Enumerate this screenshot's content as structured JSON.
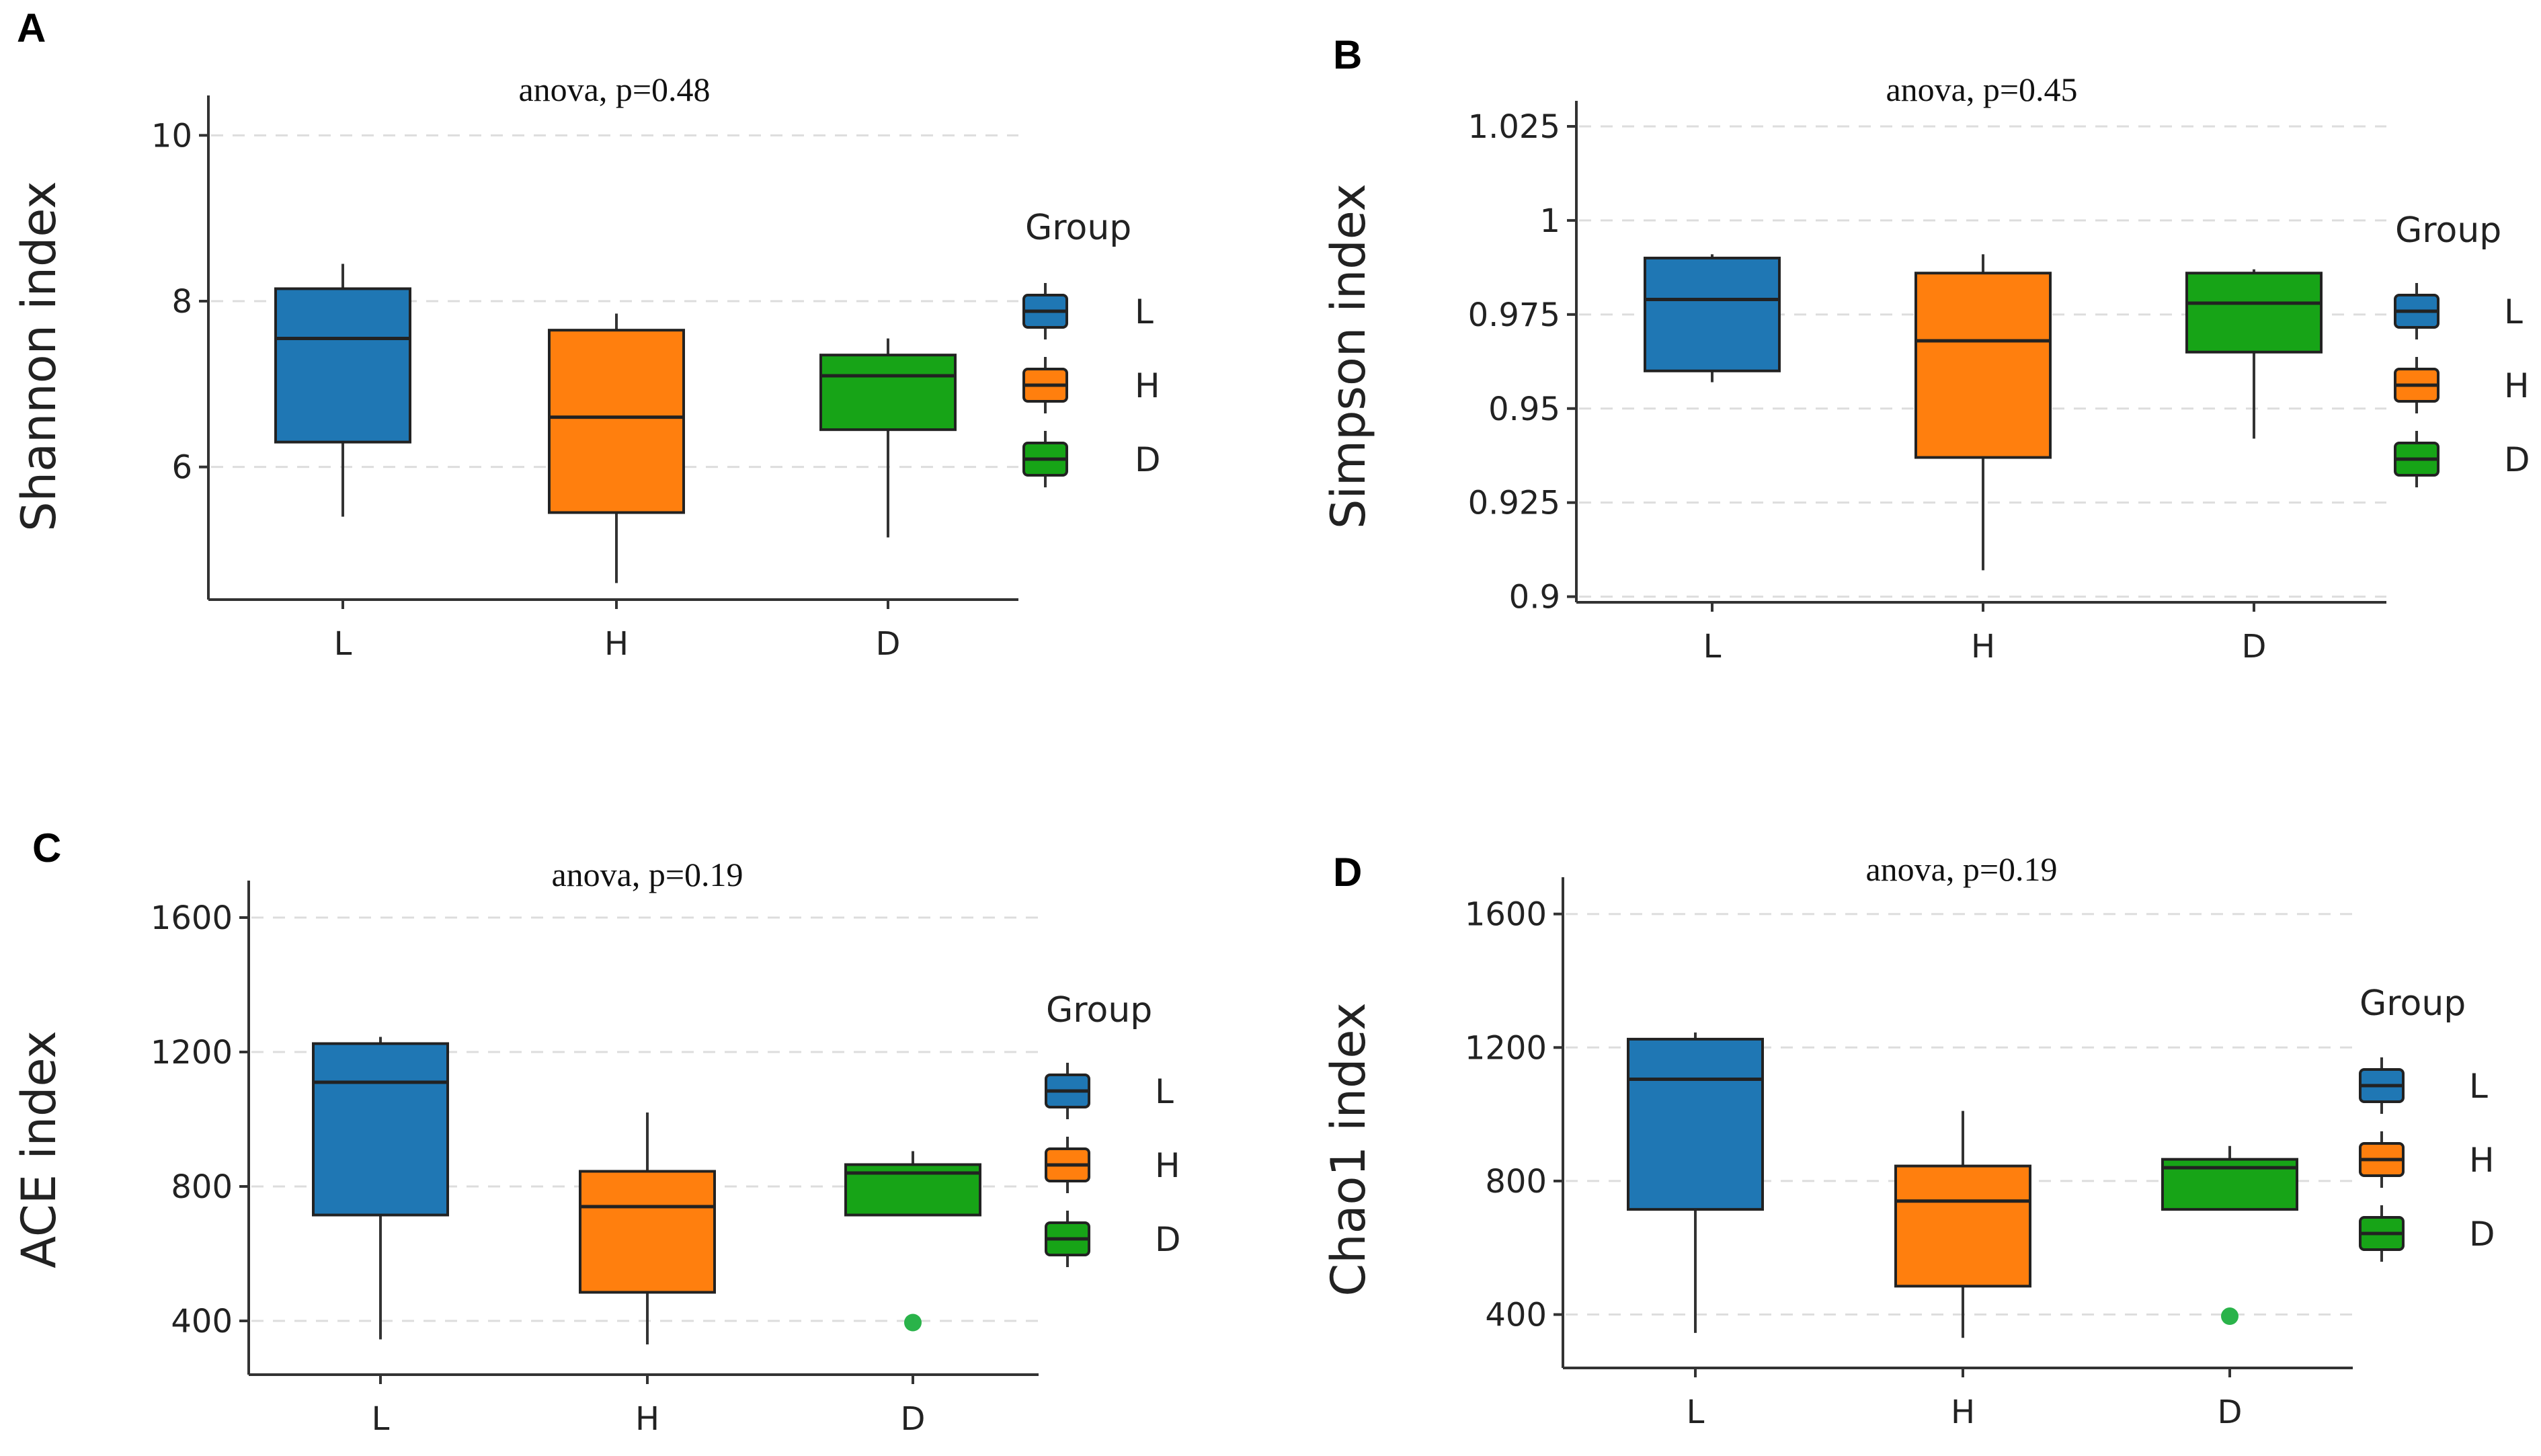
{
  "chart_data": [
    {
      "panel": "A",
      "type": "box",
      "title": "anova, p=0.48",
      "ylabel": "Shannon index",
      "xlabel": "",
      "categories": [
        "L",
        "H",
        "D"
      ],
      "ylim": [
        4.4,
        10.4
      ],
      "yticks": [
        6,
        8,
        10
      ],
      "ytick_labels": [
        "6",
        "8",
        "10"
      ],
      "grid": true,
      "legend": {
        "title": "Group",
        "placement": "right",
        "entries": [
          "L",
          "H",
          "D"
        ]
      },
      "boxes": [
        {
          "group": "L",
          "min": 5.4,
          "q1": 6.3,
          "median": 7.55,
          "q3": 8.15,
          "max": 8.45,
          "outliers": []
        },
        {
          "group": "H",
          "min": 4.6,
          "q1": 5.45,
          "median": 6.6,
          "q3": 7.65,
          "max": 7.85,
          "outliers": []
        },
        {
          "group": "D",
          "min": 5.15,
          "q1": 6.45,
          "median": 7.1,
          "q3": 7.35,
          "max": 7.55,
          "outliers": []
        }
      ]
    },
    {
      "panel": "B",
      "type": "box",
      "title": "anova, p=0.45",
      "ylabel": "Simpson index",
      "xlabel": "",
      "categories": [
        "L",
        "H",
        "D"
      ],
      "ylim": [
        0.8985,
        1.03
      ],
      "yticks": [
        0.9,
        0.925,
        0.95,
        0.975,
        1.0,
        1.025
      ],
      "ytick_labels": [
        "0.9",
        "0.925",
        "0.95",
        "0.975",
        "1",
        "1.025"
      ],
      "grid": true,
      "legend": {
        "title": "Group",
        "placement": "right",
        "entries": [
          "L",
          "H",
          "D"
        ]
      },
      "boxes": [
        {
          "group": "L",
          "min": 0.957,
          "q1": 0.96,
          "median": 0.979,
          "q3": 0.99,
          "max": 0.991,
          "outliers": []
        },
        {
          "group": "H",
          "min": 0.907,
          "q1": 0.937,
          "median": 0.968,
          "q3": 0.986,
          "max": 0.991,
          "outliers": []
        },
        {
          "group": "D",
          "min": 0.942,
          "q1": 0.965,
          "median": 0.978,
          "q3": 0.986,
          "max": 0.987,
          "outliers": []
        }
      ]
    },
    {
      "panel": "C",
      "type": "box",
      "title": "anova, p=0.19",
      "ylabel": "ACE index",
      "xlabel": "",
      "categories": [
        "L",
        "H",
        "D"
      ],
      "ylim": [
        240,
        1690
      ],
      "yticks": [
        400,
        800,
        1200,
        1600
      ],
      "ytick_labels": [
        "400",
        "800",
        "1200",
        "1600"
      ],
      "grid": true,
      "legend": {
        "title": "Group",
        "placement": "right",
        "entries": [
          "L",
          "H",
          "D"
        ]
      },
      "boxes": [
        {
          "group": "L",
          "min": 345,
          "q1": 715,
          "median": 1110,
          "q3": 1225,
          "max": 1245,
          "outliers": []
        },
        {
          "group": "H",
          "min": 330,
          "q1": 485,
          "median": 740,
          "q3": 845,
          "max": 1020,
          "outliers": []
        },
        {
          "group": "D",
          "min": 715,
          "q1": 715,
          "median": 840,
          "q3": 865,
          "max": 905,
          "outliers": [
            395
          ]
        }
      ]
    },
    {
      "panel": "D",
      "type": "box",
      "title": "anova, p=0.19",
      "ylabel": "Chao1 index",
      "xlabel": "",
      "categories": [
        "L",
        "H",
        "D"
      ],
      "ylim": [
        240,
        1690
      ],
      "yticks": [
        400,
        800,
        1200,
        1600
      ],
      "ytick_labels": [
        "400",
        "800",
        "1200",
        "1600"
      ],
      "grid": true,
      "legend": {
        "title": "Group",
        "placement": "right",
        "entries": [
          "L",
          "H",
          "D"
        ]
      },
      "boxes": [
        {
          "group": "L",
          "min": 345,
          "q1": 715,
          "median": 1105,
          "q3": 1225,
          "max": 1245,
          "outliers": []
        },
        {
          "group": "H",
          "min": 330,
          "q1": 485,
          "median": 740,
          "q3": 845,
          "max": 1010,
          "outliers": []
        },
        {
          "group": "D",
          "min": 715,
          "q1": 715,
          "median": 840,
          "q3": 865,
          "max": 905,
          "outliers": [
            395
          ]
        }
      ]
    }
  ],
  "colors": {
    "L": "#1f77b4",
    "H": "#ff7f0e",
    "D": "#17a417",
    "outlier": "#2ab34a"
  }
}
